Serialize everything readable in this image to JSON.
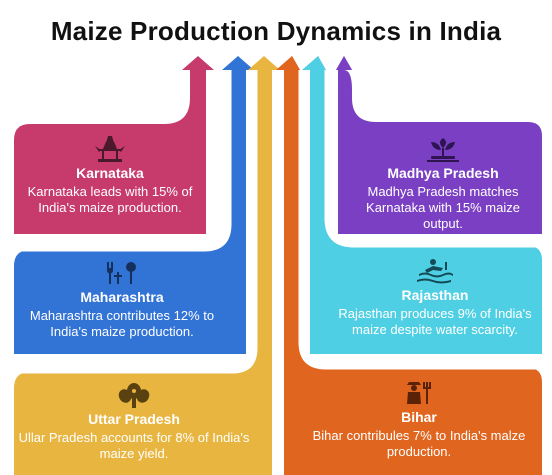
{
  "title": "Maize Production Dynamics in India",
  "colors": {
    "karnataka": "#c73b6c",
    "maharashtra": "#3273d6",
    "uttar_pradesh": "#e8b640",
    "bihar": "#e0651e",
    "rajasthan": "#4fcfe3",
    "madhya_pradesh": "#7a3fc3"
  },
  "states": {
    "karnataka": {
      "name": "Karnataka",
      "desc": "Karnataka leads with 15% of India's maize production.",
      "icon": "temple-icon"
    },
    "maharashtra": {
      "name": "Maharashtra",
      "desc": "Maharashtra contributes 12% to India's maize production.",
      "icon": "farm-tools-icon"
    },
    "uttar_pradesh": {
      "name": "Uttar Pradesh",
      "desc": "Ullar Pradesh accounts for 8% of India's maize yield.",
      "icon": "grain-icon"
    },
    "madhya_pradesh": {
      "name": "Madhya Pradesh",
      "desc": "Madhya Pradesh matches Karnataka with 15% maize output.",
      "icon": "plant-icon"
    },
    "rajasthan": {
      "name": "Rajasthan",
      "desc": "Rajasthan produces 9% of India's maize despite water scarcity.",
      "icon": "desert-icon"
    },
    "bihar": {
      "name": "Bihar",
      "desc": "Bihar contribules 7% to India's malze production.",
      "icon": "farmer-icon"
    }
  }
}
